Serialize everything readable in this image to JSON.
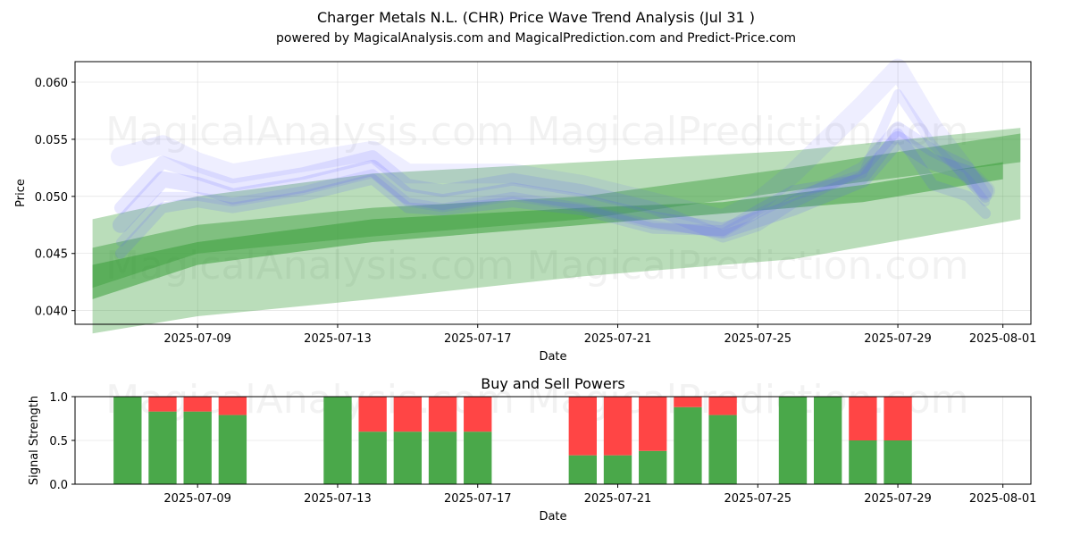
{
  "chart_data": [
    {
      "type": "line",
      "title": "Charger Metals N.L. (CHR) Price Wave Trend Analysis (Jul 31 )",
      "subtitle": "powered by MagicalAnalysis.com and MagicalPrediction.com and Predict-Price.com",
      "xlabel": "Date",
      "ylabel": "Price",
      "xlim_days": [
        -0.5,
        26.8
      ],
      "ylim": [
        0.0388,
        0.0618
      ],
      "x_ticks": [
        "2025-07-09",
        "2025-07-13",
        "2025-07-17",
        "2025-07-21",
        "2025-07-25",
        "2025-07-29",
        "2025-08-01"
      ],
      "x_tick_days": [
        3,
        7,
        11,
        15,
        19,
        23,
        26
      ],
      "y_ticks": [
        "0.040",
        "0.045",
        "0.050",
        "0.055",
        "0.060"
      ],
      "y_tick_values": [
        0.04,
        0.045,
        0.05,
        0.055,
        0.06
      ],
      "watermarks": [
        "MagicalAnalysis.com",
        "MagicalPrediction.com"
      ],
      "blue_series": [
        {
          "name": "wave-1",
          "x": [
            0.8,
            2,
            3,
            4,
            6,
            8,
            9,
            10,
            12,
            14,
            16,
            18,
            19,
            20,
            22,
            23,
            24,
            25,
            25.5
          ],
          "values": [
            0.0475,
            0.0515,
            0.051,
            0.05,
            0.051,
            0.0525,
            0.05,
            0.0495,
            0.0505,
            0.0495,
            0.048,
            0.047,
            0.048,
            0.049,
            0.0515,
            0.055,
            0.053,
            0.052,
            0.0505
          ]
        },
        {
          "name": "wave-2",
          "x": [
            0.8,
            2,
            3,
            4,
            6,
            8,
            9,
            10,
            12,
            14,
            16,
            18,
            19,
            20,
            22,
            23,
            24,
            25,
            25.5
          ],
          "values": [
            0.049,
            0.053,
            0.052,
            0.051,
            0.052,
            0.0535,
            0.051,
            0.0505,
            0.0515,
            0.0505,
            0.049,
            0.0465,
            0.0475,
            0.0495,
            0.0525,
            0.056,
            0.054,
            0.0525,
            0.05
          ]
        },
        {
          "name": "wave-3",
          "x": [
            0.8,
            2,
            3,
            4,
            6,
            8,
            9,
            10,
            12,
            14,
            16,
            18,
            19,
            20,
            22,
            23,
            24,
            25,
            25.5
          ],
          "values": [
            0.046,
            0.05,
            0.05,
            0.0495,
            0.0505,
            0.052,
            0.0495,
            0.049,
            0.05,
            0.049,
            0.0475,
            0.0468,
            0.0485,
            0.05,
            0.052,
            0.059,
            0.0545,
            0.0515,
            0.0495
          ]
        },
        {
          "name": "wave-4",
          "x": [
            0.8,
            2,
            3,
            4,
            6,
            8,
            9,
            10,
            12,
            14,
            16,
            18,
            19,
            20,
            22,
            23,
            24,
            25,
            25.5
          ],
          "values": [
            0.0535,
            0.0545,
            0.053,
            0.052,
            0.053,
            0.054,
            0.052,
            0.052,
            0.052,
            0.051,
            0.0495,
            0.048,
            0.0495,
            0.052,
            0.058,
            0.0612,
            0.056,
            0.052,
            0.0505
          ]
        },
        {
          "name": "wave-5",
          "x": [
            0.8,
            2,
            3,
            4,
            6,
            8,
            9,
            10,
            12,
            14,
            16,
            18,
            19,
            20,
            22,
            23,
            24,
            25,
            25.5
          ],
          "values": [
            0.045,
            0.049,
            0.0495,
            0.049,
            0.05,
            0.0515,
            0.049,
            0.0488,
            0.0495,
            0.0488,
            0.0472,
            0.047,
            0.0488,
            0.0505,
            0.0515,
            0.0555,
            0.051,
            0.05,
            0.0485
          ]
        }
      ],
      "green_bands": [
        {
          "name": "band-wide",
          "x": [
            0,
            3,
            8,
            14,
            20,
            26.5
          ],
          "upper": [
            0.048,
            0.05,
            0.052,
            0.053,
            0.054,
            0.056
          ],
          "lower": [
            0.038,
            0.0395,
            0.041,
            0.043,
            0.0445,
            0.048
          ],
          "opacity": 0.35
        },
        {
          "name": "band-mid",
          "x": [
            0,
            3,
            8,
            14,
            20,
            26.5
          ],
          "upper": [
            0.0455,
            0.0475,
            0.049,
            0.05,
            0.0525,
            0.0555
          ],
          "lower": [
            0.042,
            0.045,
            0.0465,
            0.048,
            0.0505,
            0.053
          ],
          "opacity": 0.45
        },
        {
          "name": "band-core",
          "x": [
            0,
            3,
            8,
            14,
            18,
            22,
            26
          ],
          "upper": [
            0.044,
            0.046,
            0.048,
            0.049,
            0.0495,
            0.051,
            0.053
          ],
          "lower": [
            0.041,
            0.044,
            0.046,
            0.0475,
            0.0485,
            0.0495,
            0.0515
          ],
          "opacity": 0.55
        }
      ]
    },
    {
      "type": "bar",
      "title": "Buy and Sell Powers",
      "xlabel": "Date",
      "ylabel": "Signal Strength",
      "xlim_days": [
        -0.5,
        26.8
      ],
      "ylim": [
        0,
        1
      ],
      "x_ticks": [
        "2025-07-09",
        "2025-07-13",
        "2025-07-17",
        "2025-07-21",
        "2025-07-25",
        "2025-07-29",
        "2025-08-01"
      ],
      "x_tick_days": [
        3,
        7,
        11,
        15,
        19,
        23,
        26
      ],
      "y_ticks": [
        "0.0",
        "0.5",
        "1.0"
      ],
      "y_tick_values": [
        0,
        0.5,
        1
      ],
      "days": [
        1,
        2,
        3,
        4,
        7,
        8,
        9,
        10,
        11,
        14,
        15,
        16,
        17,
        18,
        20,
        21,
        22,
        23
      ],
      "buy": [
        1.0,
        0.83,
        0.83,
        0.79,
        1.0,
        0.6,
        0.6,
        0.6,
        0.6,
        0.33,
        0.33,
        0.38,
        0.88,
        0.79,
        1.0,
        1.0,
        0.5,
        0.5
      ],
      "colors": {
        "buy": "#4aa84a",
        "sell": "#ff4545"
      }
    }
  ]
}
